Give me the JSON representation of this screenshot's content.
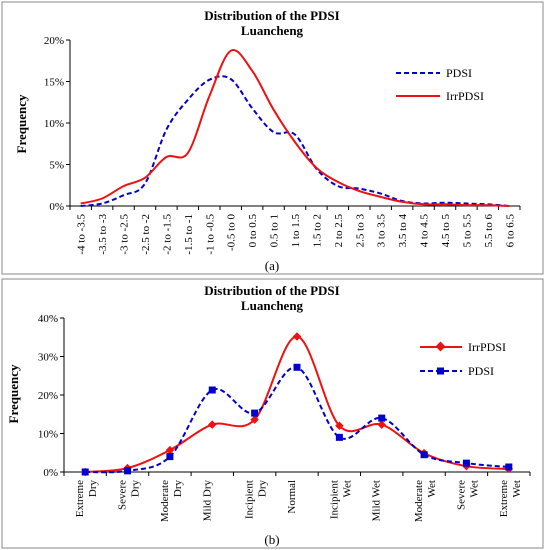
{
  "chart_data": [
    {
      "type": "line",
      "panel_label": "(a)",
      "title": "Distribution of the PDSI",
      "subtitle": "Luancheng",
      "ylabel": "Frequency",
      "xlabel": "",
      "ylim": [
        0,
        20
      ],
      "yticks": [
        "0%",
        "5%",
        "10%",
        "15%",
        "20%"
      ],
      "y_unit": "%",
      "grid": false,
      "legend": "right",
      "categories": [
        "-4 to -3.5",
        "-3.5 to -3",
        "-3 to -2.5",
        "-2.5 to -2",
        "-2 to -1.5",
        "-1.5 to -1",
        "-1 to -0.5",
        "-0.5 to 0",
        "0 to 0.5",
        "0.5 to 1",
        "1 to 1.5",
        "1.5 to 2",
        "2 to 2.5",
        "2.5 to 3",
        "3 to 3.5",
        "3.5 to 4",
        "4 to 4.5",
        "4.5 to 5",
        "5 to 5.5",
        "5.5 to 6",
        "6 to 6.5"
      ],
      "series": [
        {
          "name": "PDSI",
          "color": "#0000cc",
          "dash": "dashed",
          "marker": "none",
          "values": [
            0.0,
            0.3,
            1.3,
            2.7,
            9.2,
            12.8,
            15.2,
            15.3,
            11.8,
            8.9,
            8.6,
            4.5,
            2.4,
            2.1,
            1.5,
            0.6,
            0.3,
            0.4,
            0.3,
            0.2,
            0.0
          ]
        },
        {
          "name": "IrrPDSI",
          "color": "#ee1111",
          "dash": "solid",
          "marker": "none",
          "values": [
            0.3,
            0.9,
            2.4,
            3.4,
            5.9,
            6.4,
            13.2,
            18.7,
            16.3,
            11.6,
            7.7,
            4.6,
            2.9,
            1.8,
            1.1,
            0.5,
            0.2,
            0.2,
            0.1,
            0.1,
            0.0
          ]
        }
      ]
    },
    {
      "type": "line",
      "panel_label": "(b)",
      "title": "Distribution of the PDSI",
      "subtitle": "Luancheng",
      "ylabel": "Frequency",
      "xlabel": "",
      "ylim": [
        0,
        40
      ],
      "yticks": [
        "0%",
        "10%",
        "20%",
        "30%",
        "40%"
      ],
      "y_unit": "%",
      "grid": false,
      "legend": "right",
      "categories": [
        [
          "Extreme",
          "Dry"
        ],
        [
          "Severe",
          "Dry"
        ],
        [
          "Moderate",
          "Dry"
        ],
        [
          "Mild Dry"
        ],
        [
          "Incipient",
          "Dry"
        ],
        [
          "Normal"
        ],
        [
          "Incipient",
          "Wet"
        ],
        [
          "Mild Wet"
        ],
        [
          "Moderate",
          "Wet"
        ],
        [
          "Severe",
          "Wet"
        ],
        [
          "Extreme",
          "Wet"
        ]
      ],
      "series": [
        {
          "name": "IrrPDSI",
          "color": "#ee1111",
          "dash": "solid",
          "marker": "diamond",
          "values": [
            0.0,
            1.0,
            5.7,
            12.3,
            13.6,
            35.2,
            12.0,
            12.3,
            4.9,
            1.5,
            0.8
          ]
        },
        {
          "name": "PDSI",
          "color": "#0000cc",
          "dash": "dashed",
          "marker": "square",
          "values": [
            0.0,
            0.3,
            4.0,
            21.3,
            15.3,
            27.2,
            9.0,
            14.0,
            4.5,
            2.3,
            1.3
          ]
        }
      ]
    }
  ]
}
